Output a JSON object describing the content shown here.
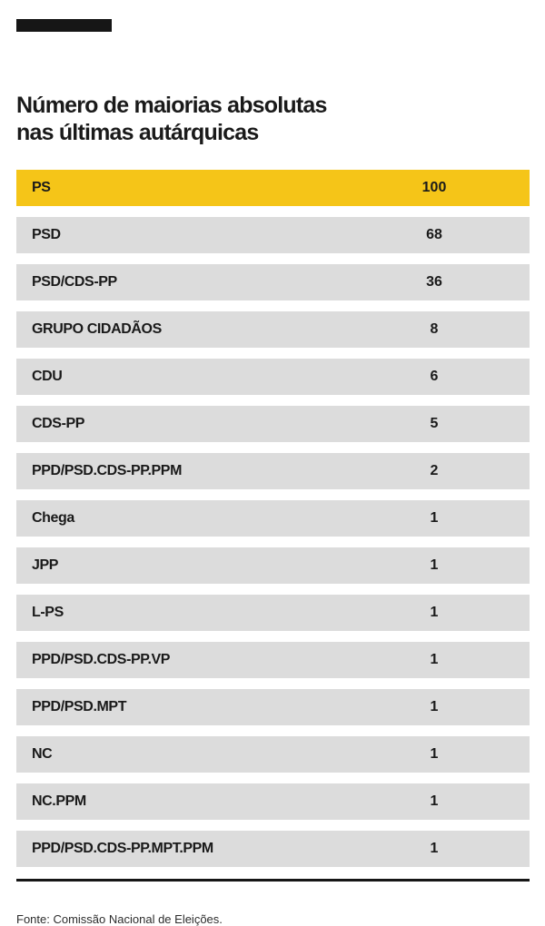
{
  "page": {
    "background": "#ffffff",
    "dark_color": "#161616",
    "highlight_color": "#F5C518",
    "row_color": "#DCDCDC",
    "text_color": "#1a1a1a"
  },
  "header": {
    "title_line1": "Número de maiorias absolutas",
    "title_line2": "nas últimas autárquicas"
  },
  "chart_data": {
    "type": "table",
    "title": "Número de maiorias absolutas nas últimas autárquicas",
    "categories": [
      "PS",
      "PSD",
      "PSD/CDS-PP",
      "GRUPO CIDADÃOS",
      "CDU",
      "CDS-PP",
      "PPD/PSD.CDS-PP.PPM",
      "Chega",
      "JPP",
      "L-PS",
      "PPD/PSD.CDS-PP.VP",
      "PPD/PSD.MPT",
      "NC",
      "NC.PPM",
      "PPD/PSD.CDS-PP.MPT.PPM"
    ],
    "values": [
      100,
      68,
      36,
      8,
      6,
      5,
      2,
      1,
      1,
      1,
      1,
      1,
      1,
      1,
      1
    ],
    "highlight_index": 0,
    "highlight_color": "#F5C518",
    "row_color": "#DCDCDC",
    "legend": "none",
    "grid": "off"
  },
  "footer": {
    "source": "Fonte: Comissão Nacional de Eleições."
  }
}
